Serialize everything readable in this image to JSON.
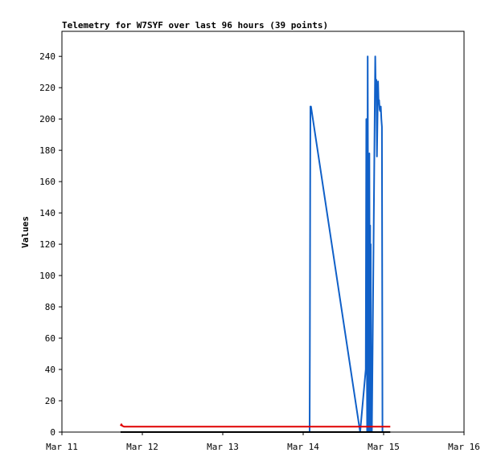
{
  "chart_data": {
    "type": "line",
    "title": "Telemetry for W7SYF over last 96 hours (39 points)",
    "xlabel": "",
    "ylabel": "Values",
    "x_ticks": [
      "Mar 11",
      "Mar 12",
      "Mar 13",
      "Mar 14",
      "Mar 15",
      "Mar 16"
    ],
    "xlim": [
      "2024-03-11T00:00",
      "2024-03-16T00:00"
    ],
    "y_ticks": [
      0,
      20,
      40,
      60,
      80,
      100,
      120,
      140,
      160,
      180,
      200,
      220,
      240
    ],
    "ylim": [
      0,
      256
    ],
    "grid": false,
    "series": [
      {
        "color": "#1060c8",
        "x": [
          "2024-03-14T01:55",
          "2024-03-14T02:00",
          "2024-03-14T02:05",
          "2024-03-14T02:10",
          "2024-03-14T02:20",
          "2024-03-14T17:00",
          "2024-03-14T18:40",
          "2024-03-14T18:50",
          "2024-03-14T19:05",
          "2024-03-14T19:15",
          "2024-03-14T19:30",
          "2024-03-14T19:45",
          "2024-03-14T19:55",
          "2024-03-14T20:00",
          "2024-03-14T20:05",
          "2024-03-14T20:10",
          "2024-03-14T20:15",
          "2024-03-14T20:20",
          "2024-03-14T20:30",
          "2024-03-14T21:20",
          "2024-03-14T21:30",
          "2024-03-14T21:40",
          "2024-03-14T21:50",
          "2024-03-14T22:00",
          "2024-03-14T22:10",
          "2024-03-14T22:20",
          "2024-03-14T22:30",
          "2024-03-14T22:40",
          "2024-03-14T22:50",
          "2024-03-14T23:00",
          "2024-03-14T23:10",
          "2024-03-14T23:20",
          "2024-03-14T23:30",
          "2024-03-14T23:40",
          "2024-03-14T23:50",
          "2024-03-15T00:00",
          "2024-03-15T00:10",
          "2024-03-15T00:15",
          "2024-03-15T00:20"
        ],
        "y": [
          0,
          52,
          155,
          208,
          208,
          0,
          40,
          200,
          0,
          240,
          0,
          178,
          0,
          132,
          0,
          120,
          45,
          0,
          0,
          200,
          240,
          215,
          225,
          176,
          200,
          224,
          210,
          212,
          206,
          205,
          208,
          200,
          195,
          0,
          0,
          0,
          0,
          0,
          0
        ]
      },
      {
        "color": "#e00000",
        "x": [
          "2024-03-11T17:30",
          "2024-03-11T17:45",
          "2024-03-11T18:00",
          "2024-03-11T18:30",
          "2024-03-12T12:00",
          "2024-03-14T00:00",
          "2024-03-15T02:00"
        ],
        "y": [
          4,
          5,
          4,
          3.5,
          3.5,
          3.5,
          3.5
        ]
      },
      {
        "color": "#000000",
        "x": [
          "2024-03-11T17:30",
          "2024-03-15T02:00"
        ],
        "y": [
          0,
          0
        ]
      }
    ]
  }
}
